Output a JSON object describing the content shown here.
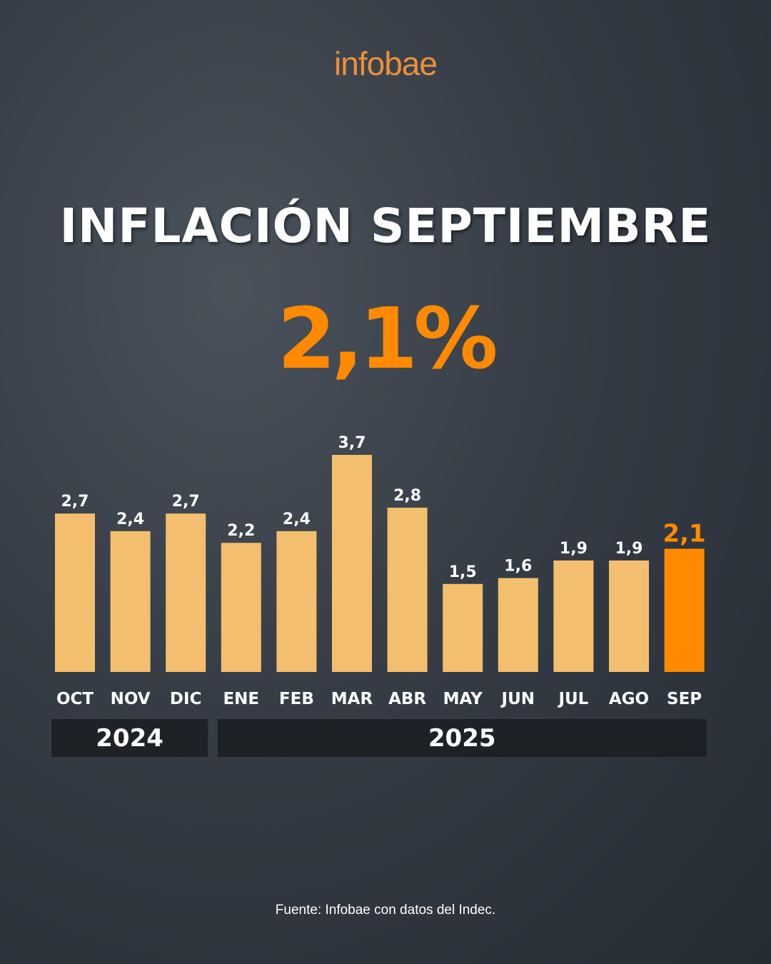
{
  "logo": "infobae",
  "title": "INFLACIÓN SEPTIEMBRE",
  "headline_value": "2,1%",
  "source": "Fuente: Infobae con datos del Indec.",
  "colors": {
    "bar": "#f3bf6e",
    "highlight": "#ff8a00",
    "year_band": "#1c1f24"
  },
  "chart_data": {
    "type": "bar",
    "categories": [
      "OCT",
      "NOV",
      "DIC",
      "ENE",
      "FEB",
      "MAR",
      "ABR",
      "MAY",
      "JUN",
      "JUL",
      "AGO",
      "SEP"
    ],
    "values": [
      2.7,
      2.4,
      2.7,
      2.2,
      2.4,
      3.7,
      2.8,
      1.5,
      1.6,
      1.9,
      1.9,
      2.1
    ],
    "labels": [
      "2,7",
      "2,4",
      "2,7",
      "2,2",
      "2,4",
      "3,7",
      "2,8",
      "1,5",
      "1,6",
      "1,9",
      "1,9",
      "2,1"
    ],
    "highlight_index": 11,
    "year_groups": [
      {
        "label": "2024",
        "from": 0,
        "to": 2
      },
      {
        "label": "2025",
        "from": 3,
        "to": 11
      }
    ],
    "ylim": [
      0,
      3.7
    ],
    "grid": false
  }
}
